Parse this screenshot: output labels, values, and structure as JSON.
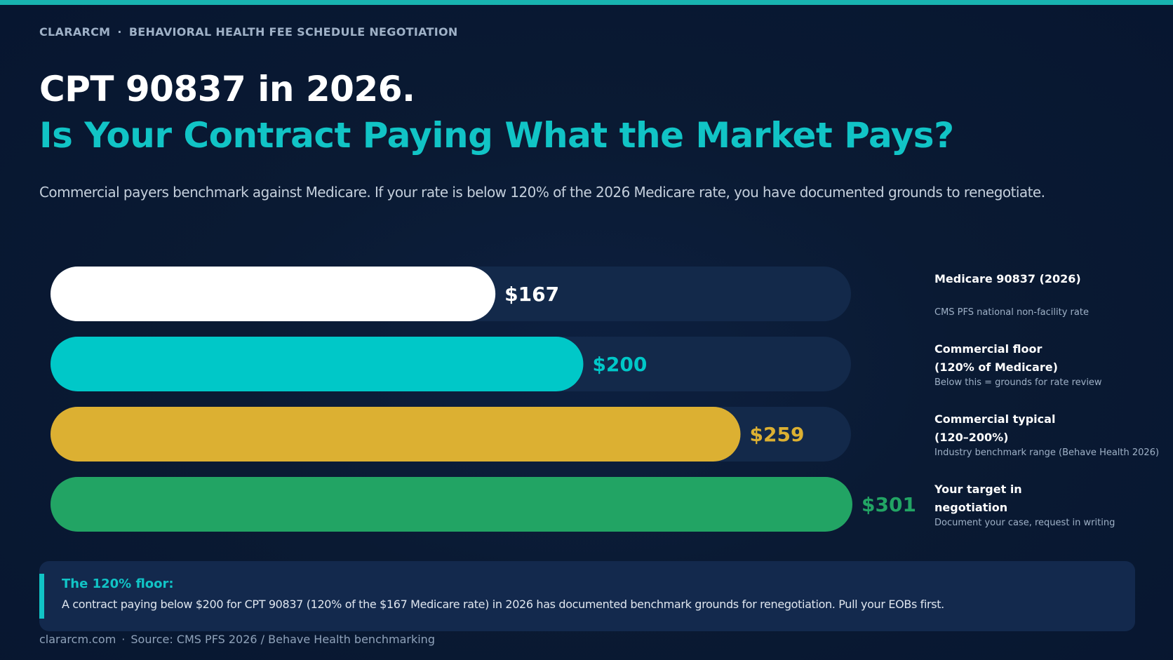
{
  "header": {
    "brand": "CLARARCM",
    "separator": "·",
    "section": "BEHAVIORAL HEALTH FEE SCHEDULE NEGOTIATION",
    "title_line1": "CPT 90837 in 2026.",
    "title_line2": "Is Your Contract Paying What the Market Pays?",
    "subtitle": "Commercial payers benchmark against Medicare. If your rate is below 120% of the 2026 Medicare rate, you have documented grounds to renegotiate."
  },
  "colors": {
    "accent": "#11c4c6",
    "background": "#0a1a33",
    "track": "#13294a",
    "medicare": "#ffffff",
    "floor": "#00c8c8",
    "typical": "#dcb032",
    "target": "#22a464"
  },
  "chart_data": {
    "type": "bar",
    "orientation": "horizontal",
    "xlim": [
      0,
      301
    ],
    "grid": false,
    "categories": [
      "Medicare 90837 (2026)",
      "Commercial floor (120% of Medicare)",
      "Commercial typical (120–200%)",
      "Your target in negotiation"
    ],
    "values": [
      167,
      200,
      259,
      301
    ],
    "value_labels": [
      "$167",
      "$200",
      "$259",
      "$301"
    ],
    "bars": [
      {
        "label_lines": [
          "Medicare 90837 (2026)"
        ],
        "note": "CMS PFS national non-facility rate",
        "value": 167,
        "value_label": "$167",
        "color": "#ffffff"
      },
      {
        "label_lines": [
          "Commercial floor",
          "(120% of Medicare)"
        ],
        "note": "Below this = grounds for rate review",
        "value": 200,
        "value_label": "$200",
        "color": "#00c8c8"
      },
      {
        "label_lines": [
          "Commercial typical",
          "(120–200%)"
        ],
        "note": "Industry benchmark range (Behave Health 2026)",
        "value": 259,
        "value_label": "$259",
        "color": "#dcb032"
      },
      {
        "label_lines": [
          "Your target in",
          "negotiation"
        ],
        "note": "Document your case, request in writing",
        "value": 301,
        "value_label": "$301",
        "color": "#22a464"
      }
    ]
  },
  "callout": {
    "title": "The 120% floor:",
    "body": "A contract paying below $200 for CPT 90837 (120% of the $167 Medicare rate) in 2026 has documented benchmark grounds for renegotiation. Pull your EOBs first."
  },
  "footer": {
    "site": "clararcm.com",
    "separator": "·",
    "source": "Source: CMS PFS 2026 / Behave Health benchmarking"
  }
}
